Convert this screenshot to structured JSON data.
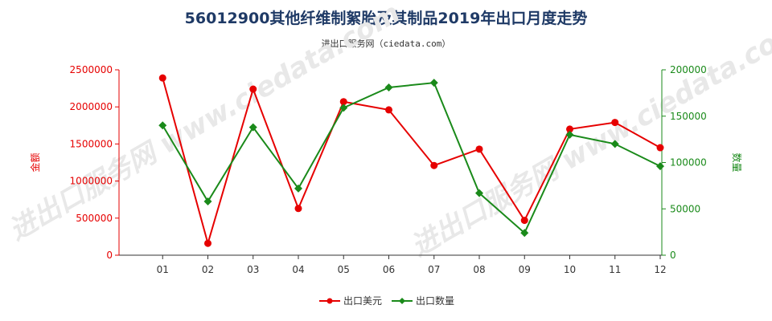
{
  "title": "56012900其他纤维制絮胎及其制品2019年出口月度走势",
  "subtitle": "进出口服务网（ciedata.com）",
  "watermark": "进出口服务网 www.ciedata.com",
  "chart_data": {
    "type": "line",
    "categories": [
      "01",
      "02",
      "03",
      "04",
      "05",
      "06",
      "07",
      "08",
      "09",
      "10",
      "11",
      "12"
    ],
    "series": [
      {
        "name": "出口美元",
        "axis": "left",
        "color": "#e60000",
        "marker": "circle",
        "values": [
          2390000,
          160000,
          2240000,
          630000,
          2070000,
          1960000,
          1210000,
          1430000,
          470000,
          1700000,
          1790000,
          1450000
        ]
      },
      {
        "name": "出口数量",
        "axis": "right",
        "color": "#1a8a1a",
        "marker": "diamond",
        "values": [
          140000,
          58000,
          138000,
          72000,
          159000,
          181000,
          186000,
          67000,
          24000,
          130000,
          120000,
          96000
        ]
      }
    ],
    "ylabel_left": "金额",
    "ylabel_right": "数量",
    "ylim_left": [
      0,
      2500000
    ],
    "ylim_right": [
      0,
      200000
    ],
    "yticks_left": [
      "0",
      "500000",
      "1000000",
      "1500000",
      "2000000",
      "2500000"
    ],
    "yticks_right": [
      "0",
      "50000",
      "100000",
      "150000",
      "200000"
    ],
    "grid": false,
    "legend_position": "bottom-center"
  }
}
